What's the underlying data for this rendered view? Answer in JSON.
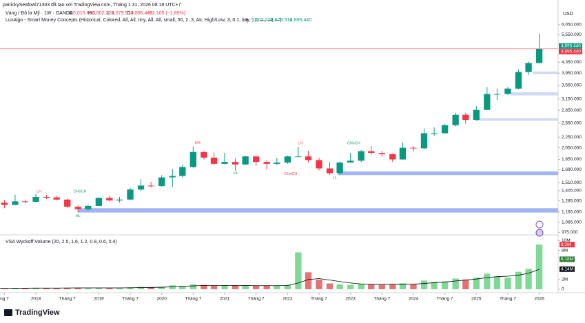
{
  "header": {
    "attribution": "panickySeafowl71303 đã tạo với TradingView.com, Tháng 1 31, 2026 08:18 UTC+7",
    "symbol": "Vàng / Đô la Mỹ · 1W · OANDA",
    "ohlc": [
      {
        "key": "O",
        "value": "5,015.630"
      },
      {
        "key": "H",
        "value": "5,602.225"
      },
      {
        "key": "L",
        "value": "4,679.510"
      },
      {
        "key": "C",
        "value": "4,895.440"
      }
    ],
    "change": "−92.105 (−1.85%)",
    "indicator": "LuxAlgo - Smart Money Concepts (Historical, Colored, All, All, tiny, All, All, small, 50, 2, 3, Atr, High/Low, 3, 0.1, tiny, , 1, —, —, —)",
    "indicator_icon": "⊘",
    "indicator_values": [
      "5,602.225",
      "4,679.510",
      "4,895.440"
    ],
    "currency": "USD",
    "logo": "TradingView"
  },
  "chart_data": [
    {
      "type": "candlestick",
      "log_scale": true,
      "up_color": "#089981",
      "down_color": "#f23645",
      "x": [
        2017.33,
        2017.5,
        2017.67,
        2017.83,
        2018.0,
        2018.17,
        2018.33,
        2018.5,
        2018.67,
        2018.83,
        2019.0,
        2019.17,
        2019.33,
        2019.5,
        2019.67,
        2019.83,
        2020.0,
        2020.17,
        2020.33,
        2020.5,
        2020.67,
        2020.83,
        2021.0,
        2021.17,
        2021.33,
        2021.5,
        2021.67,
        2021.83,
        2022.0,
        2022.17,
        2022.33,
        2022.5,
        2022.67,
        2022.83,
        2023.0,
        2023.17,
        2023.33,
        2023.5,
        2023.67,
        2023.83,
        2024.0,
        2024.17,
        2024.33,
        2024.5,
        2024.67,
        2024.83,
        2025.0,
        2025.17,
        2025.33,
        2025.5,
        2025.67,
        2025.83,
        2026.0
      ],
      "open": [
        1250,
        1265,
        1240,
        1280,
        1275,
        1330,
        1325,
        1300,
        1220,
        1195,
        1230,
        1320,
        1290,
        1300,
        1420,
        1470,
        1465,
        1580,
        1600,
        1730,
        1975,
        1880,
        1780,
        1810,
        1770,
        1900,
        1810,
        1780,
        1800,
        1900,
        1900,
        1840,
        1710,
        1640,
        1800,
        1830,
        1990,
        1960,
        1940,
        1850,
        2050,
        2040,
        2330,
        2330,
        2500,
        2740,
        2620,
        2860,
        3290,
        3290,
        3450,
        3990,
        4320
      ],
      "high": [
        1270,
        1295,
        1357,
        1300,
        1366,
        1355,
        1345,
        1310,
        1235,
        1245,
        1326,
        1347,
        1330,
        1440,
        1557,
        1520,
        1611,
        1703,
        1765,
        2075,
        1990,
        1965,
        1960,
        1870,
        1916,
        1905,
        1835,
        1877,
        1915,
        2070,
        1998,
        1880,
        1810,
        1815,
        1960,
        2010,
        2080,
        1990,
        1950,
        2145,
        2080,
        2430,
        2450,
        2530,
        2790,
        2790,
        2955,
        3500,
        3450,
        3500,
        4080,
        4380,
        5602.225
      ],
      "low": [
        1215,
        1205,
        1235,
        1260,
        1265,
        1305,
        1290,
        1210,
        1160,
        1180,
        1225,
        1280,
        1266,
        1295,
        1400,
        1445,
        1455,
        1451,
        1580,
        1720,
        1850,
        1765,
        1770,
        1676,
        1760,
        1750,
        1690,
        1760,
        1780,
        1890,
        1800,
        1680,
        1615,
        1620,
        1800,
        1805,
        1930,
        1895,
        1810,
        1845,
        1985,
        2030,
        2280,
        2320,
        2470,
        2535,
        2600,
        2850,
        3120,
        3270,
        3430,
        3890,
        4300
      ],
      "close": [
        1265,
        1240,
        1280,
        1275,
        1330,
        1325,
        1300,
        1220,
        1195,
        1230,
        1320,
        1290,
        1300,
        1420,
        1470,
        1465,
        1580,
        1600,
        1730,
        1975,
        1880,
        1780,
        1810,
        1770,
        1900,
        1810,
        1780,
        1800,
        1900,
        1900,
        1840,
        1710,
        1640,
        1800,
        1830,
        1990,
        1960,
        1940,
        1850,
        2050,
        2040,
        2330,
        2330,
        2500,
        2740,
        2620,
        2860,
        3290,
        3290,
        3450,
        3990,
        4320,
        4895.44
      ],
      "xlim": [
        2017.43,
        2026.3
      ],
      "xticks": [
        {
          "value": 2017.5,
          "label": "ng 7"
        },
        2018,
        {
          "value": 2018.5,
          "label": "Tháng 7"
        },
        2019,
        {
          "value": 2019.5,
          "label": "Tháng 7"
        },
        2020,
        {
          "value": 2020.5,
          "label": "Tháng 7"
        },
        2021,
        {
          "value": 2021.5,
          "label": "Tháng 7"
        },
        2022,
        {
          "value": 2022.5,
          "label": "Tháng 7"
        },
        2023,
        {
          "value": 2023.5,
          "label": "Tháng 7"
        },
        2024,
        {
          "value": 2024.5,
          "label": "Tháng 7"
        },
        2025,
        {
          "value": 2025.5,
          "label": "Tháng 7"
        },
        2026
      ],
      "ylim": [
        959,
        7520
      ],
      "yticks": [
        {
          "value": 6050,
          "label": "6,050.000"
        },
        {
          "value": 5550,
          "label": "5,550.000"
        },
        {
          "value": 4350,
          "label": "4,350.000"
        },
        {
          "value": 3950,
          "label": "3,950.000"
        },
        {
          "value": 3550,
          "label": "3,550.000"
        },
        {
          "value": 3150,
          "label": "3,150.000"
        },
        {
          "value": 2850,
          "label": "2,850.000"
        },
        {
          "value": 2550,
          "label": "2,550.000"
        },
        {
          "value": 2250,
          "label": "2,250.000"
        },
        {
          "value": 2050,
          "label": "2,050.000"
        },
        {
          "value": 1850,
          "label": "1,850.000"
        },
        {
          "value": 1690,
          "label": "1,690.000"
        },
        {
          "value": 1510,
          "label": "1,510.000"
        },
        {
          "value": 1405,
          "label": "1,405.000"
        },
        {
          "value": 1285,
          "label": "1,285.000"
        },
        {
          "value": 1165,
          "label": "1,165.000"
        },
        {
          "value": 1065,
          "label": "1,065.000"
        },
        {
          "value": 975,
          "label": "975.000"
        }
      ],
      "price_labels": [
        {
          "value": 4895.44,
          "label": "4,895.440",
          "color": "#089981"
        },
        {
          "value": 4895.44,
          "label": "4,895.440",
          "color": "#f23645"
        }
      ],
      "zones": [
        {
          "from": 2018.67,
          "low": 1160,
          "high": 1205,
          "color": "#8fa8f0"
        },
        {
          "from": 2022.8,
          "low": 1612,
          "high": 1665,
          "color": "#8fa8f0"
        },
        {
          "from": 2025.0,
          "low": 2600,
          "high": 2660,
          "color": "#c5d3f7"
        },
        {
          "from": 2025.55,
          "low": 3250,
          "high": 3340,
          "color": "#c5d3f7"
        },
        {
          "from": 2025.9,
          "low": 3920,
          "high": 4010,
          "color": "#c5d3f7"
        }
      ],
      "annotations": [
        {
          "text": "LH",
          "x": 2018.05,
          "y": 1395,
          "color": "#f23645"
        },
        {
          "text": "CHoCH",
          "x": 2018.7,
          "y": 1395,
          "color": "#089981"
        },
        {
          "text": "HL",
          "x": 2018.67,
          "y": 1125,
          "color": "#089981"
        },
        {
          "text": "HH",
          "x": 2020.57,
          "y": 2140,
          "color": "#f23645"
        },
        {
          "text": "HL",
          "x": 2021.18,
          "y": 1640,
          "color": "#089981"
        },
        {
          "text": "LH",
          "x": 2022.2,
          "y": 2130,
          "color": "#f23645"
        },
        {
          "text": "CHoCH",
          "x": 2022.05,
          "y": 1630,
          "color": "#f23645"
        },
        {
          "text": "LL",
          "x": 2022.75,
          "y": 1575,
          "color": "#089981"
        },
        {
          "text": "CHoCH",
          "x": 2023.05,
          "y": 2130,
          "color": "#089981"
        }
      ]
    },
    {
      "type": "bar",
      "title": "VSA Wyckoff Volume (20, 2.5, 1.6, 1.2, 0.9, 0.6, 0.4)",
      "up_color": "#7ed996",
      "down_color": "#e57373",
      "ma_color": "#000000",
      "values": [
        0.15,
        0.2,
        0.25,
        0.2,
        0.3,
        0.25,
        0.25,
        0.3,
        0.3,
        0.25,
        0.3,
        0.25,
        0.3,
        0.4,
        0.5,
        0.4,
        0.5,
        0.8,
        0.7,
        1.0,
        0.9,
        0.7,
        0.8,
        0.8,
        0.7,
        0.7,
        0.8,
        0.7,
        0.9,
        7.6,
        3.5,
        2.0,
        1.2,
        1.0,
        0.9,
        1.1,
        1.0,
        0.9,
        1.0,
        1.2,
        1.1,
        1.8,
        1.5,
        1.6,
        2.2,
        2.0,
        2.4,
        3.2,
        2.6,
        2.4,
        3.6,
        4.2,
        9.2
      ],
      "ma": [
        0.2,
        0.2,
        0.22,
        0.22,
        0.24,
        0.25,
        0.25,
        0.27,
        0.28,
        0.28,
        0.28,
        0.28,
        0.28,
        0.3,
        0.35,
        0.38,
        0.42,
        0.5,
        0.6,
        0.7,
        0.78,
        0.8,
        0.8,
        0.78,
        0.77,
        0.75,
        0.75,
        0.75,
        0.78,
        1.3,
        2.0,
        2.2,
        1.9,
        1.6,
        1.3,
        1.1,
        1.0,
        1.0,
        1.0,
        1.0,
        1.05,
        1.2,
        1.35,
        1.5,
        1.7,
        1.9,
        2.1,
        2.4,
        2.6,
        2.7,
        2.9,
        3.3,
        4.1
      ],
      "ylim": [
        0,
        10.5
      ],
      "yticks": [
        {
          "value": 10,
          "label": "10M"
        },
        {
          "value": 8,
          "label": "8M"
        },
        {
          "value": 2,
          "label": "2M"
        },
        0
      ],
      "markers": [
        {
          "value": 9.2,
          "label": "9.2M",
          "color": "#f23645"
        },
        {
          "value": 6.18,
          "label": "6.18M",
          "color": "#2e7d32"
        },
        {
          "value": 4.14,
          "label": "4.14M",
          "color": "#131722"
        }
      ]
    }
  ]
}
